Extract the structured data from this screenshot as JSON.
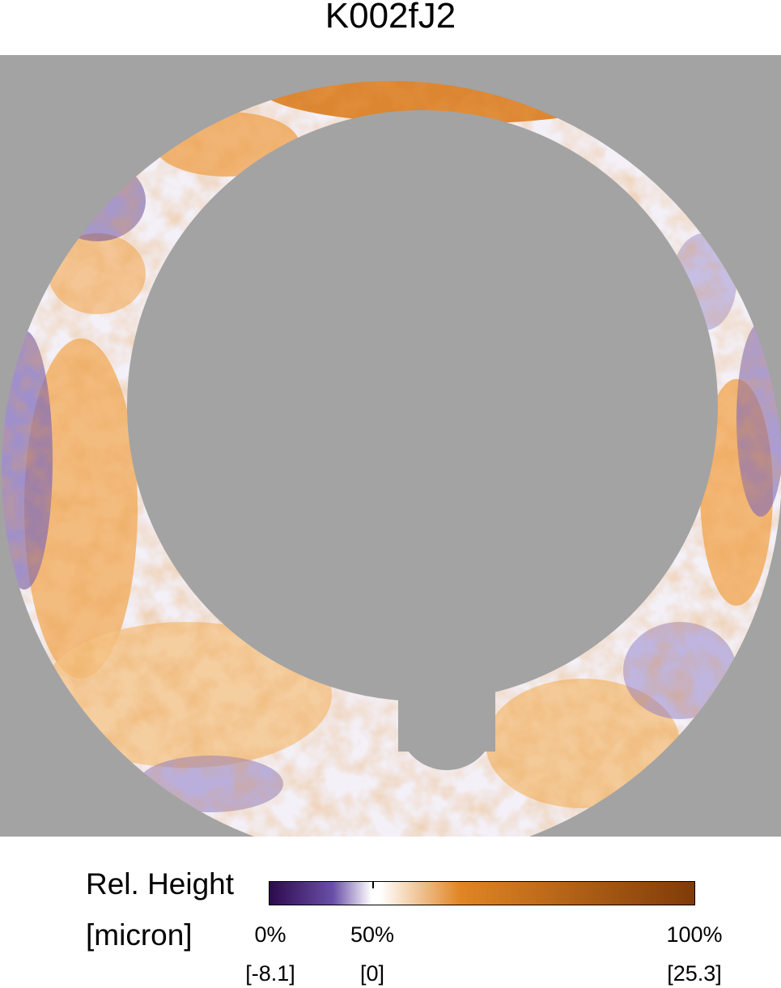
{
  "title": "K002fJ2",
  "colorbar": {
    "label_line1": "Rel. Height",
    "label_line2": "[micron]",
    "ticks": [
      {
        "percent": "0%",
        "value": "[-8.1]"
      },
      {
        "percent": "50%",
        "value": "[0]"
      },
      {
        "percent": "100%",
        "value": "[25.3]"
      }
    ],
    "colors": {
      "low": "#2d0a4e",
      "low_mid": "#6a4fa8",
      "mid": "#ffffff",
      "high_mid": "#e08524",
      "high": "#7f3b08",
      "masked": "#a3a3a3"
    }
  }
}
